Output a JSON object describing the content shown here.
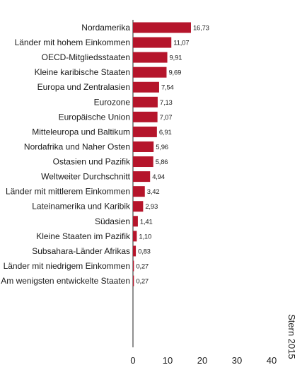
{
  "chart_data": {
    "type": "bar",
    "orientation": "horizontal",
    "categories": [
      "Nordamerika",
      "Länder mit hohem Einkommen",
      "OECD-Mitgliedsstaaten",
      "Kleine karibische Staaten",
      "Europa und Zentralasien",
      "Eurozone",
      "Europäische Union",
      "Mitteleuropa und Baltikum",
      "Nordafrika und Naher Osten",
      "Ostasien und Pazifik",
      "Weltweiter Durchschnitt",
      "Länder mit mittlerem Einkommen",
      "Lateinamerika und Karibik",
      "Südasien",
      "Kleine Staaten im Pazifik",
      "Subsahara-Länder Afrikas",
      "Länder mit niedrigem Einkommen",
      "Am wenigsten entwickelte Staaten"
    ],
    "values": [
      16.73,
      11.07,
      9.91,
      9.69,
      7.54,
      7.13,
      7.07,
      6.91,
      5.96,
      5.86,
      4.94,
      3.42,
      2.93,
      1.41,
      1.1,
      0.83,
      0.27,
      0.27
    ],
    "value_labels": [
      "16,73",
      "11,07",
      "9,91",
      "9,69",
      "7,54",
      "7,13",
      "7,07",
      "6,91",
      "5,96",
      "5,86",
      "4,94",
      "3,42",
      "2,93",
      "1,41",
      "1,10",
      "0,83",
      "0,27",
      "0,27"
    ],
    "x_ticks": [
      0,
      10,
      20,
      30,
      40
    ],
    "x_tick_labels": [
      "0",
      "10",
      "20",
      "30",
      "40"
    ],
    "xlim": [
      0,
      40
    ],
    "grid": false,
    "bar_color": "#b5152b"
  },
  "source": "Stern 2015"
}
